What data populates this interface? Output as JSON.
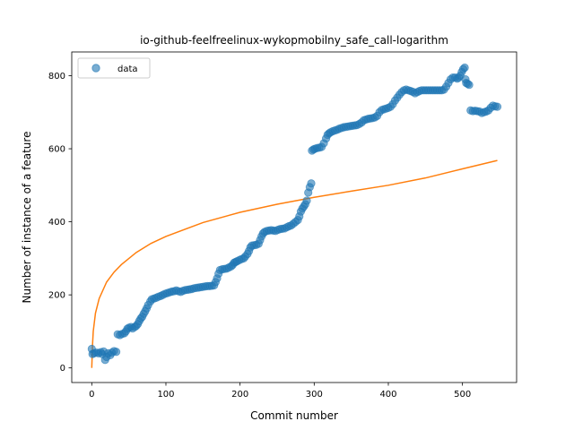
{
  "chart_data": {
    "type": "scatter",
    "title": "io-github-feelfreelinux-wykopmobilny_safe_call-logarithm",
    "xlabel": "Commit number",
    "ylabel": "Number of instance of a feature",
    "xlim": [
      -27,
      573
    ],
    "ylim": [
      -40,
      865
    ],
    "xticks": [
      0,
      100,
      200,
      300,
      400,
      500
    ],
    "yticks": [
      0,
      200,
      400,
      600,
      800
    ],
    "legend": {
      "position": "top-left",
      "entries": [
        "data"
      ]
    },
    "colors": {
      "data": "#1f77b4",
      "fit": "#ff7f0e"
    },
    "series": [
      {
        "name": "data",
        "kind": "scatter",
        "points": [
          [
            0,
            52
          ],
          [
            1,
            38
          ],
          [
            3,
            40
          ],
          [
            6,
            42
          ],
          [
            9,
            40
          ],
          [
            12,
            43
          ],
          [
            14,
            38
          ],
          [
            16,
            45
          ],
          [
            18,
            22
          ],
          [
            20,
            30
          ],
          [
            22,
            40
          ],
          [
            25,
            35
          ],
          [
            27,
            42
          ],
          [
            30,
            46
          ],
          [
            33,
            44
          ],
          [
            35,
            92
          ],
          [
            38,
            90
          ],
          [
            41,
            93
          ],
          [
            44,
            95
          ],
          [
            46,
            100
          ],
          [
            48,
            107
          ],
          [
            50,
            110
          ],
          [
            53,
            112
          ],
          [
            55,
            108
          ],
          [
            58,
            112
          ],
          [
            60,
            115
          ],
          [
            62,
            120
          ],
          [
            64,
            128
          ],
          [
            66,
            135
          ],
          [
            68,
            140
          ],
          [
            70,
            148
          ],
          [
            72,
            155
          ],
          [
            74,
            163
          ],
          [
            76,
            172
          ],
          [
            79,
            182
          ],
          [
            81,
            188
          ],
          [
            84,
            190
          ],
          [
            87,
            192
          ],
          [
            90,
            195
          ],
          [
            93,
            197
          ],
          [
            96,
            200
          ],
          [
            99,
            203
          ],
          [
            102,
            205
          ],
          [
            105,
            207
          ],
          [
            108,
            209
          ],
          [
            111,
            210
          ],
          [
            114,
            212
          ],
          [
            117,
            210
          ],
          [
            120,
            208
          ],
          [
            123,
            211
          ],
          [
            126,
            213
          ],
          [
            129,
            214
          ],
          [
            132,
            215
          ],
          [
            135,
            216
          ],
          [
            138,
            218
          ],
          [
            141,
            219
          ],
          [
            144,
            220
          ],
          [
            147,
            221
          ],
          [
            150,
            222
          ],
          [
            153,
            223
          ],
          [
            156,
            224
          ],
          [
            159,
            224
          ],
          [
            162,
            225
          ],
          [
            165,
            226
          ],
          [
            167,
            235
          ],
          [
            169,
            245
          ],
          [
            171,
            258
          ],
          [
            173,
            268
          ],
          [
            176,
            270
          ],
          [
            179,
            271
          ],
          [
            182,
            272
          ],
          [
            185,
            275
          ],
          [
            188,
            278
          ],
          [
            190,
            282
          ],
          [
            192,
            288
          ],
          [
            194,
            290
          ],
          [
            196,
            292
          ],
          [
            199,
            295
          ],
          [
            202,
            298
          ],
          [
            205,
            300
          ],
          [
            207,
            305
          ],
          [
            210,
            312
          ],
          [
            212,
            320
          ],
          [
            214,
            330
          ],
          [
            216,
            335
          ],
          [
            219,
            336
          ],
          [
            222,
            337
          ],
          [
            225,
            340
          ],
          [
            227,
            350
          ],
          [
            229,
            360
          ],
          [
            231,
            368
          ],
          [
            233,
            372
          ],
          [
            236,
            375
          ],
          [
            239,
            376
          ],
          [
            242,
            377
          ],
          [
            245,
            376
          ],
          [
            248,
            375
          ],
          [
            251,
            378
          ],
          [
            254,
            380
          ],
          [
            257,
            381
          ],
          [
            260,
            382
          ],
          [
            263,
            385
          ],
          [
            266,
            388
          ],
          [
            269,
            390
          ],
          [
            272,
            395
          ],
          [
            275,
            400
          ],
          [
            278,
            405
          ],
          [
            280,
            415
          ],
          [
            282,
            428
          ],
          [
            284,
            436
          ],
          [
            286,
            442
          ],
          [
            288,
            448
          ],
          [
            290,
            458
          ],
          [
            292,
            480
          ],
          [
            294,
            495
          ],
          [
            296,
            505
          ],
          [
            297,
            595
          ],
          [
            299,
            598
          ],
          [
            301,
            600
          ],
          [
            304,
            602
          ],
          [
            307,
            603
          ],
          [
            310,
            605
          ],
          [
            313,
            615
          ],
          [
            316,
            628
          ],
          [
            318,
            638
          ],
          [
            320,
            642
          ],
          [
            322,
            645
          ],
          [
            325,
            648
          ],
          [
            328,
            650
          ],
          [
            331,
            652
          ],
          [
            334,
            655
          ],
          [
            337,
            657
          ],
          [
            340,
            659
          ],
          [
            343,
            660
          ],
          [
            346,
            661
          ],
          [
            349,
            662
          ],
          [
            352,
            663
          ],
          [
            355,
            664
          ],
          [
            358,
            665
          ],
          [
            361,
            668
          ],
          [
            364,
            672
          ],
          [
            367,
            678
          ],
          [
            370,
            680
          ],
          [
            373,
            682
          ],
          [
            376,
            683
          ],
          [
            379,
            684
          ],
          [
            382,
            686
          ],
          [
            385,
            690
          ],
          [
            388,
            700
          ],
          [
            391,
            706
          ],
          [
            394,
            708
          ],
          [
            397,
            710
          ],
          [
            400,
            712
          ],
          [
            403,
            715
          ],
          [
            406,
            722
          ],
          [
            409,
            732
          ],
          [
            412,
            740
          ],
          [
            415,
            748
          ],
          [
            418,
            755
          ],
          [
            421,
            760
          ],
          [
            424,
            762
          ],
          [
            427,
            760
          ],
          [
            430,
            758
          ],
          [
            433,
            756
          ],
          [
            436,
            752
          ],
          [
            439,
            755
          ],
          [
            442,
            758
          ],
          [
            445,
            760
          ],
          [
            448,
            760
          ],
          [
            451,
            760
          ],
          [
            454,
            760
          ],
          [
            457,
            760
          ],
          [
            460,
            760
          ],
          [
            463,
            760
          ],
          [
            466,
            760
          ],
          [
            469,
            760
          ],
          [
            472,
            760
          ],
          [
            475,
            762
          ],
          [
            478,
            770
          ],
          [
            481,
            780
          ],
          [
            484,
            790
          ],
          [
            487,
            795
          ],
          [
            490,
            795
          ],
          [
            493,
            792
          ],
          [
            495,
            795
          ],
          [
            497,
            800
          ],
          [
            499,
            810
          ],
          [
            501,
            818
          ],
          [
            503,
            822
          ],
          [
            504,
            790
          ],
          [
            505,
            780
          ],
          [
            507,
            778
          ],
          [
            509,
            775
          ],
          [
            511,
            705
          ],
          [
            514,
            703
          ],
          [
            517,
            704
          ],
          [
            520,
            703
          ],
          [
            523,
            702
          ],
          [
            526,
            698
          ],
          [
            529,
            700
          ],
          [
            532,
            702
          ],
          [
            535,
            705
          ],
          [
            538,
            712
          ],
          [
            541,
            718
          ],
          [
            544,
            716
          ],
          [
            547,
            715
          ]
        ]
      },
      {
        "name": "",
        "kind": "line",
        "function": "logarithmic",
        "points": [
          [
            0,
            0
          ],
          [
            1,
            63
          ],
          [
            2,
            100
          ],
          [
            5,
            150
          ],
          [
            10,
            190
          ],
          [
            20,
            235
          ],
          [
            30,
            262
          ],
          [
            40,
            283
          ],
          [
            60,
            316
          ],
          [
            80,
            341
          ],
          [
            100,
            360
          ],
          [
            150,
            398
          ],
          [
            200,
            426
          ],
          [
            250,
            448
          ],
          [
            300,
            467
          ],
          [
            350,
            484
          ],
          [
            400,
            500
          ],
          [
            450,
            520
          ],
          [
            500,
            545
          ],
          [
            547,
            568
          ]
        ]
      }
    ]
  }
}
